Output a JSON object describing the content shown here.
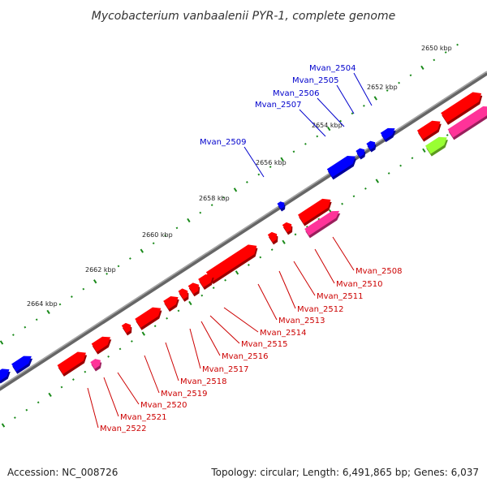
{
  "title": "Mycobacterium vanbaalenii PYR-1, complete genome",
  "footer": {
    "accession": "Accession: NC_008726",
    "summary": "Topology: circular; Length: 6,491,865 bp; Genes: 6,037"
  },
  "colors": {
    "background": "#ffffff",
    "backbone": "#808080",
    "tick": "#1a8a1a",
    "forward_cds": "#ff0000",
    "reverse_cds": "#0000ff",
    "forward_label": "#cc0000",
    "reverse_label": "#0000cc",
    "pink_feature": "#ff3399",
    "green_feature": "#99ff33"
  },
  "ticks": [
    {
      "label": "2650 kbp"
    },
    {
      "label": "2652 kbp"
    },
    {
      "label": "2654 kbp"
    },
    {
      "label": "2656 kbp"
    },
    {
      "label": "2658 kbp"
    },
    {
      "label": "2660 kbp"
    },
    {
      "label": "2662 kbp"
    },
    {
      "label": "2664 kbp"
    }
  ],
  "reverse_genes": [
    {
      "label": "Mvan_2504"
    },
    {
      "label": "Mvan_2505"
    },
    {
      "label": "Mvan_2506"
    },
    {
      "label": "Mvan_2507"
    },
    {
      "label": "Mvan_2509"
    }
  ],
  "forward_genes": [
    {
      "label": "Mvan_2508"
    },
    {
      "label": "Mvan_2510"
    },
    {
      "label": "Mvan_2511"
    },
    {
      "label": "Mvan_2512"
    },
    {
      "label": "Mvan_2513"
    },
    {
      "label": "Mvan_2514"
    },
    {
      "label": "Mvan_2515"
    },
    {
      "label": "Mvan_2516"
    },
    {
      "label": "Mvan_2517"
    },
    {
      "label": "Mvan_2518"
    },
    {
      "label": "Mvan_2519"
    },
    {
      "label": "Mvan_2520"
    },
    {
      "label": "Mvan_2521"
    },
    {
      "label": "Mvan_2522"
    }
  ]
}
